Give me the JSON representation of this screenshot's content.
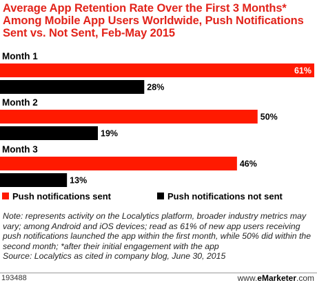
{
  "title": "Average App Retention Rate Over the First 3 Months* Among Mobile App Users Worldwide, Push Notifications Sent vs. Not Sent, Feb-May 2015",
  "colors": {
    "sent": "#ff1a00",
    "not_sent": "#000000",
    "title": "#e2231a"
  },
  "chart_data": {
    "type": "bar",
    "orientation": "horizontal",
    "categories": [
      "Month 1",
      "Month 2",
      "Month 3"
    ],
    "series": [
      {
        "name": "Push notifications sent",
        "values": [
          61,
          50,
          46
        ],
        "labels": [
          "61%",
          "50%",
          "46%"
        ]
      },
      {
        "name": "Push notifications not sent",
        "values": [
          28,
          19,
          13
        ],
        "labels": [
          "28%",
          "19%",
          "13%"
        ]
      }
    ],
    "xlim": [
      0,
      61
    ],
    "grid": false,
    "legend": "bottom"
  },
  "note": "Note: represents activity on the Localytics platform, broader industry metrics may vary; among Android and iOS devices; read as 61% of new app users receiving push notifications launched the app within the first month, while 50% did within the second month; *after their initial engagement with the app",
  "source": "Source: Localytics as cited in company blog, June 30, 2015",
  "footer": {
    "id": "193488",
    "brand_prefix": "www.",
    "brand_bold": "eMarketer",
    "brand_suffix": ".com"
  }
}
